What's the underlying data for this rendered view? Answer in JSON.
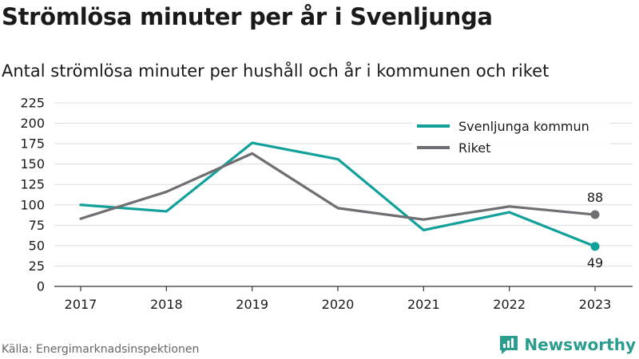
{
  "title": "Strömlösa minuter per år i Svenljunga",
  "subtitle": "Antal strömlösa minuter per hushåll och år i kommunen och riket",
  "source": "Källa: Energimarknadsinspektionen",
  "brand": {
    "name": "Newsworthy",
    "icon": "bar-chart-logo-icon",
    "color": "#2a9d8f"
  },
  "chart_data": {
    "type": "line",
    "x": [
      "2017",
      "2018",
      "2019",
      "2020",
      "2021",
      "2022",
      "2023"
    ],
    "ylim": [
      0,
      225
    ],
    "yticks": [
      0,
      25,
      50,
      75,
      100,
      125,
      150,
      175,
      200,
      225
    ],
    "grid": true,
    "legend": "top-right",
    "series": [
      {
        "name": "Svenljunga kommun",
        "color": "#12a19a",
        "values": [
          100,
          92,
          176,
          156,
          69,
          91,
          49
        ],
        "end_label": "49"
      },
      {
        "name": "Riket",
        "color": "#6e6e73",
        "values": [
          83,
          116,
          163,
          96,
          82,
          98,
          88
        ],
        "end_label": "88"
      }
    ]
  }
}
